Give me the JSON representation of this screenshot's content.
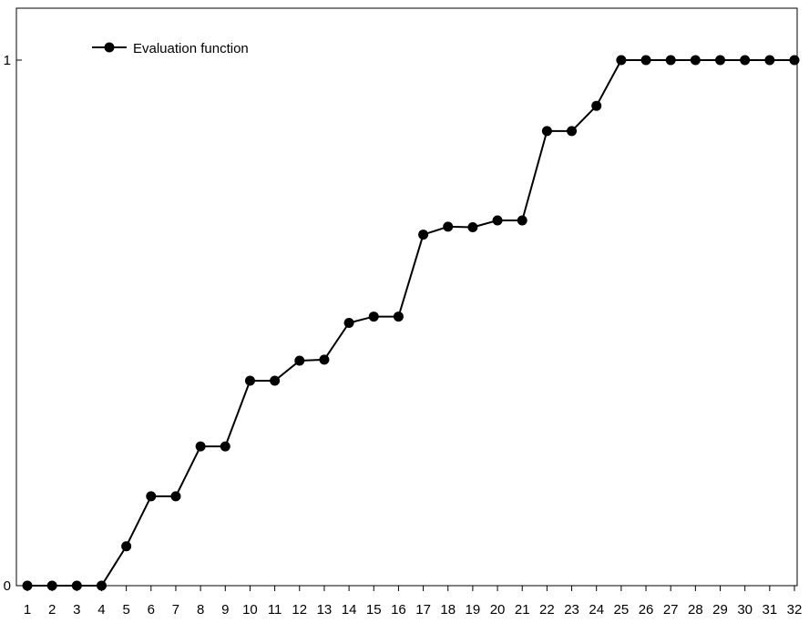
{
  "chart_data": {
    "type": "line",
    "title": "",
    "xlabel": "",
    "ylabel": "",
    "x": [
      1,
      2,
      3,
      4,
      5,
      6,
      7,
      8,
      9,
      10,
      11,
      12,
      13,
      14,
      15,
      16,
      17,
      18,
      19,
      20,
      21,
      22,
      23,
      24,
      25,
      26,
      27,
      28,
      29,
      30,
      31,
      32
    ],
    "series": [
      {
        "name": "Evaluation function",
        "color": "#000000",
        "marker": "filled-circle",
        "values": [
          0,
          0,
          0,
          0,
          0.075,
          0.17,
          0.17,
          0.265,
          0.265,
          0.39,
          0.39,
          0.428,
          0.43,
          0.5,
          0.512,
          0.512,
          0.668,
          0.683,
          0.682,
          0.695,
          0.695,
          0.865,
          0.865,
          0.913,
          1,
          1,
          1,
          1,
          1,
          1,
          1,
          1
        ]
      }
    ],
    "xlim": [
      1,
      32
    ],
    "ylim": [
      0,
      1
    ],
    "y_ticks": [
      "0",
      "1"
    ],
    "x_ticks": [
      "1",
      "2",
      "3",
      "4",
      "5",
      "6",
      "7",
      "8",
      "9",
      "10",
      "11",
      "12",
      "13",
      "14",
      "15",
      "16",
      "17",
      "18",
      "19",
      "20",
      "21",
      "22",
      "23",
      "24",
      "25",
      "26",
      "27",
      "28",
      "29",
      "30",
      "31",
      "32"
    ],
    "grid": false,
    "legend_position": "top-left"
  }
}
